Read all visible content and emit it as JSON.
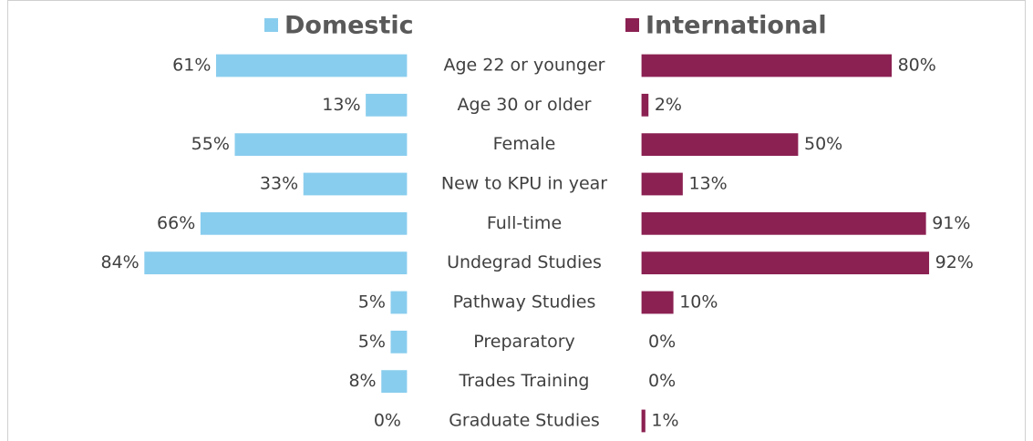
{
  "chart_data": {
    "type": "bar",
    "categories": [
      "Age 22 or younger",
      "Age 30 or older",
      "Female",
      "New to KPU in year",
      "Full-time",
      "Undegrad Studies",
      "Pathway Studies",
      "Preparatory",
      "Trades Training",
      "Graduate Studies"
    ],
    "series": [
      {
        "name": "Domestic",
        "color": "#89cdee",
        "values": [
          61,
          13,
          55,
          33,
          66,
          84,
          5,
          5,
          8,
          0
        ],
        "value_labels": [
          "61%",
          "13%",
          "55%",
          "33%",
          "66%",
          "84%",
          "5%",
          "5%",
          "8%",
          "0%"
        ]
      },
      {
        "name": "International",
        "color": "#8b2152",
        "values": [
          80,
          2,
          50,
          13,
          91,
          92,
          10,
          0,
          0,
          1
        ],
        "value_labels": [
          "80%",
          "2%",
          "50%",
          "13%",
          "91%",
          "92%",
          "10%",
          "0%",
          "0%",
          "1%"
        ]
      }
    ]
  }
}
